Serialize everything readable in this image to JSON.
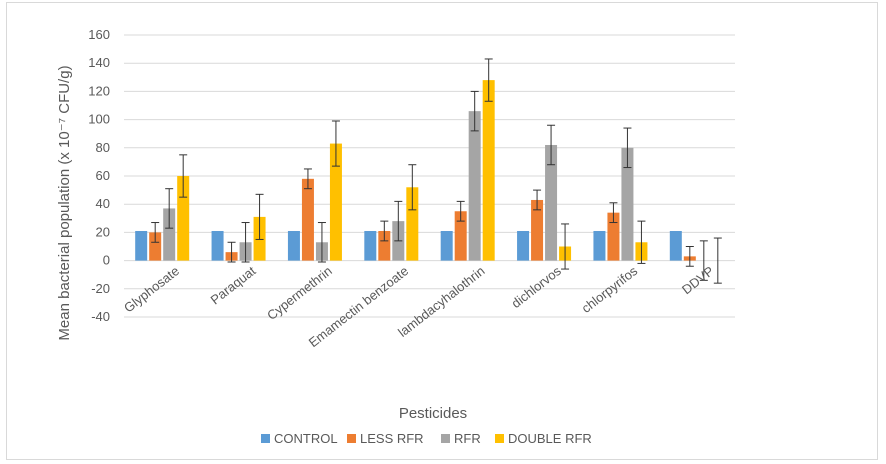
{
  "chart_data": {
    "type": "bar",
    "title": "",
    "xlabel": "Pesticides",
    "ylabel": "Mean bacterial population (x 10⁻⁷ CFU/g)",
    "ylim": [
      -40,
      160
    ],
    "yticks": [
      -40,
      -20,
      0,
      20,
      40,
      60,
      80,
      100,
      120,
      140,
      160
    ],
    "grid": true,
    "legend_position": "bottom",
    "categories": [
      "Glyphosate",
      "Paraquat",
      "Cypermethrin",
      "Emamectin benzoate",
      "lambdacyhalothrin",
      "dichlorvos",
      "chlorpyrifos",
      "DDVP"
    ],
    "series": [
      {
        "name": "CONTROL",
        "color": "#5b9bd5",
        "values": [
          21,
          21,
          21,
          21,
          21,
          21,
          21,
          21
        ],
        "errors": [
          0,
          0,
          0,
          0,
          0,
          0,
          0,
          0
        ]
      },
      {
        "name": "LESS RFR",
        "color": "#ed7d31",
        "values": [
          20,
          6,
          58,
          21,
          35,
          43,
          34,
          3
        ],
        "errors": [
          7,
          7,
          7,
          7,
          7,
          7,
          7,
          7
        ]
      },
      {
        "name": "RFR",
        "color": "#a5a5a5",
        "values": [
          37,
          13,
          13,
          28,
          106,
          82,
          80,
          0
        ],
        "errors": [
          14,
          14,
          14,
          14,
          14,
          14,
          14,
          14
        ]
      },
      {
        "name": "DOUBLE RFR",
        "color": "#ffc000",
        "values": [
          60,
          31,
          83,
          52,
          128,
          10,
          13,
          0
        ],
        "errors": [
          15,
          16,
          16,
          16,
          15,
          16,
          15,
          16
        ]
      }
    ]
  }
}
